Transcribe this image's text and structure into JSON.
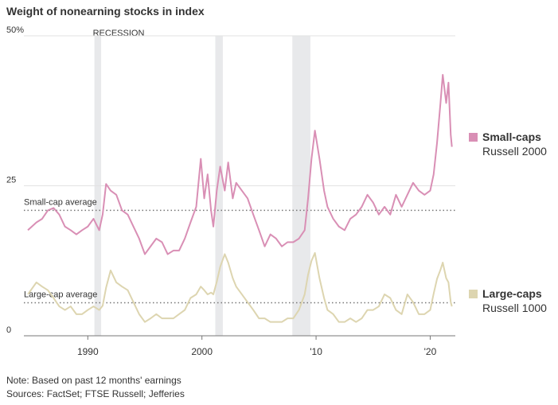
{
  "chart_data": {
    "type": "line",
    "title": "Weight of nonearning stocks in index",
    "x": [
      1984.75,
      1985.5,
      1986,
      1986.5,
      1987,
      1987.5,
      1988,
      1988.5,
      1989,
      1989.5,
      1990,
      1990.5,
      1991,
      1991.3,
      1991.6,
      1992,
      1992.5,
      1993,
      1993.5,
      1994,
      1994.5,
      1995,
      1995.5,
      1996,
      1996.5,
      1997,
      1997.5,
      1998,
      1998.5,
      1999,
      1999.5,
      1999.9,
      2000.2,
      2000.5,
      2000.8,
      2001,
      2001.3,
      2001.6,
      2002,
      2002.3,
      2002.7,
      2003,
      2003.5,
      2004,
      2004.5,
      2005,
      2005.5,
      2006,
      2006.5,
      2007,
      2007.5,
      2008,
      2008.5,
      2009,
      2009.3,
      2009.6,
      2009.9,
      2010.3,
      2010.7,
      2011,
      2011.5,
      2012,
      2012.5,
      2013,
      2013.5,
      2014,
      2014.5,
      2015,
      2015.5,
      2016,
      2016.5,
      2017,
      2017.5,
      2018,
      2018.5,
      2019,
      2019.5,
      2020,
      2020.3,
      2020.6,
      2020.9,
      2021.1,
      2021.4,
      2021.6,
      2021.8,
      2021.9
    ],
    "series": [
      {
        "name": "Small-caps",
        "index": "Russell 2000",
        "color": "#d98fb5",
        "values": [
          17.6,
          18.9,
          19.5,
          20.9,
          21.3,
          20.2,
          18.2,
          17.6,
          16.9,
          17.6,
          18.2,
          19.5,
          17.6,
          20.2,
          25.3,
          24.2,
          23.5,
          20.9,
          20.2,
          18.2,
          16.2,
          13.6,
          14.9,
          16.2,
          15.6,
          13.6,
          14.2,
          14.2,
          16.2,
          18.9,
          21.5,
          29.5,
          22.9,
          26.9,
          20.9,
          18.2,
          24.2,
          28.2,
          24.2,
          28.9,
          22.9,
          25.5,
          24.2,
          22.9,
          20.2,
          17.6,
          14.9,
          16.9,
          16.2,
          14.9,
          15.6,
          15.6,
          16.2,
          17.6,
          22.9,
          29.5,
          34.2,
          29.5,
          24.2,
          21.5,
          19.5,
          18.2,
          17.6,
          19.5,
          20.2,
          21.5,
          23.5,
          22.2,
          20.2,
          21.5,
          20.2,
          23.5,
          21.5,
          23.5,
          25.5,
          24.2,
          23.5,
          24.2,
          26.9,
          32.2,
          38.8,
          43.5,
          38.8,
          42.2,
          33.5,
          31.5
        ]
      },
      {
        "name": "Large-caps",
        "index": "Russell 1000",
        "color": "#ddd5b0",
        "values": [
          6.9,
          8.9,
          8.2,
          7.6,
          6.3,
          4.9,
          4.3,
          4.9,
          3.6,
          3.6,
          4.3,
          4.9,
          4.3,
          5.0,
          8.0,
          10.9,
          8.9,
          8.2,
          7.6,
          5.6,
          3.6,
          2.3,
          2.9,
          3.6,
          2.9,
          2.9,
          2.9,
          3.6,
          4.3,
          6.3,
          6.9,
          8.2,
          7.6,
          6.9,
          7.2,
          6.9,
          9.0,
          11.5,
          13.6,
          12.2,
          9.6,
          8.2,
          6.9,
          5.6,
          4.3,
          2.9,
          2.9,
          2.3,
          2.3,
          2.3,
          2.9,
          2.9,
          4.3,
          6.9,
          10.2,
          12.5,
          13.8,
          9.6,
          6.3,
          4.3,
          3.6,
          2.3,
          2.3,
          2.9,
          2.3,
          2.9,
          4.3,
          4.3,
          4.9,
          6.9,
          6.3,
          4.3,
          3.6,
          6.9,
          5.6,
          3.6,
          3.6,
          4.3,
          7.0,
          9.5,
          11.0,
          12.2,
          9.6,
          8.9,
          5.6,
          4.9
        ]
      }
    ],
    "reference_lines": [
      {
        "label": "Small-cap average",
        "value": 20.9
      },
      {
        "label": "Large-cap average",
        "value": 5.5
      }
    ],
    "recessions": {
      "label": "RECESSION",
      "periods": [
        [
          1990.58,
          1991.17
        ],
        [
          2001.17,
          2001.83
        ],
        [
          2007.92,
          2009.5
        ]
      ]
    },
    "xlim": [
      1984.4,
      2022.2
    ],
    "ylim": [
      0,
      50
    ],
    "xticks": [
      1990,
      2000,
      {
        "value": 2010,
        "label": "'10"
      },
      {
        "value": 2020,
        "label": "'20"
      }
    ],
    "yticks": [
      0,
      25,
      {
        "value": 50,
        "label": "50%"
      }
    ],
    "grid": true,
    "note": "Note: Based on past 12 months' earnings",
    "source": "Sources: FactSet; FTSE Russell; Jefferies"
  }
}
